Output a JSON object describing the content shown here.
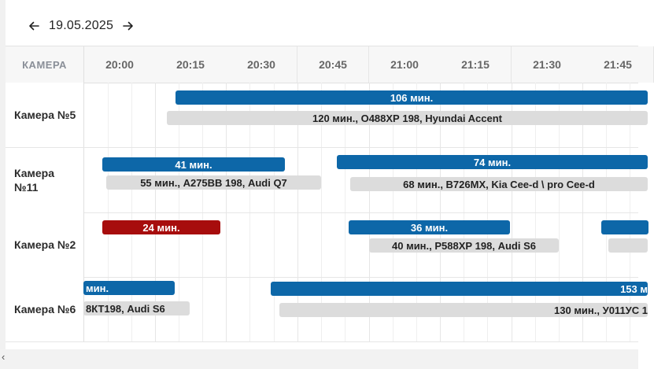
{
  "datebar": {
    "date": "19.05.2025",
    "prev_icon": "arrow-left-icon",
    "next_icon": "arrow-right-icon"
  },
  "header": {
    "camera_column": "КАМЕРА",
    "times": [
      "20:00",
      "20:15",
      "20:30",
      "20:45",
      "21:00",
      "21:15",
      "21:30",
      "21:45"
    ]
  },
  "rows": [
    {
      "label": "Камера №5"
    },
    {
      "label": "Камера №11"
    },
    {
      "label": "Камера №2"
    },
    {
      "label": "Камера №6"
    }
  ],
  "bars": {
    "r0_blue1": "106 мин.",
    "r0_grey1": "120 мин., О488ХР 198, Hyundai Accent",
    "r1_blue1": "41 мин.",
    "r1_grey1": "55  мин., А275ВВ 198, Audi Q7",
    "r1_blue2": "74 мин.",
    "r1_grey2": "68 мин., В726МХ, Kia Cee-d \\ pro Cee-d",
    "r2_red1": "24 мин.",
    "r2_blue1": "36 мин.",
    "r2_grey1": "40  мин., Р588ХР 198, Audi S6",
    "r3_blue1": "мин.",
    "r3_grey1": "8КТ198, Audi S6",
    "r3_blue2": "153 м",
    "r3_grey2": "130  мин., У011УС 1"
  },
  "colors": {
    "blue": "#0d67a8",
    "red": "#a70d0d",
    "grey": "#dcdcdc"
  },
  "scrollbar": {
    "left_icon": "chevron-left-icon"
  }
}
